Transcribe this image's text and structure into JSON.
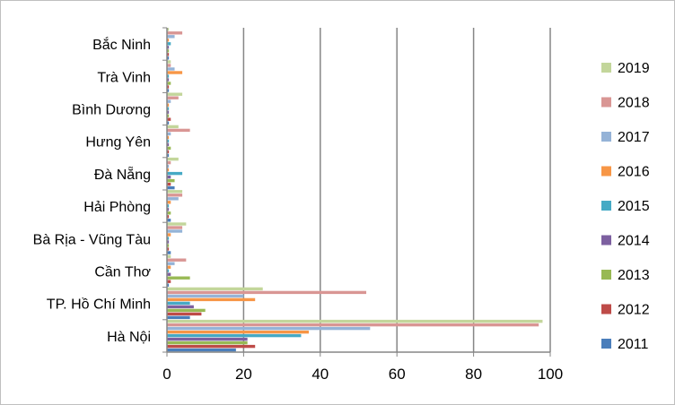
{
  "chart_data": {
    "type": "bar",
    "orientation": "horizontal",
    "title": "",
    "xlabel": "",
    "ylabel": "",
    "xlim": [
      0,
      100
    ],
    "x_ticks": [
      0,
      20,
      40,
      60,
      80,
      100
    ],
    "grid": "vertical major gridlines",
    "legend_position": "right",
    "categories": [
      "Hà Nội",
      "TP. Hồ Chí Minh",
      "Cần Thơ",
      "Bà Rịa - Vũng Tàu",
      "Hải Phòng",
      "Đà Nẵng",
      "Hưng Yên",
      "Bình Dương",
      "Trà Vinh",
      "Bắc Ninh"
    ],
    "series": [
      {
        "name": "2011",
        "color": "#4a7ebb",
        "values": [
          18,
          6,
          0.5,
          1,
          1,
          2,
          0.5,
          0.5,
          0.5,
          0.5
        ]
      },
      {
        "name": "2012",
        "color": "#be4b48",
        "values": [
          23,
          9,
          1,
          0.5,
          0.5,
          1,
          0.5,
          1,
          0.5,
          0.5
        ]
      },
      {
        "name": "2013",
        "color": "#98b954",
        "values": [
          21,
          10,
          6,
          0.5,
          1,
          2,
          1,
          0.5,
          1,
          0.5
        ]
      },
      {
        "name": "2014",
        "color": "#7d60a0",
        "values": [
          21,
          7,
          1,
          0.5,
          0.5,
          1,
          0.5,
          0.5,
          0.5,
          0.5
        ]
      },
      {
        "name": "2015",
        "color": "#46aac5",
        "values": [
          35,
          6,
          0.5,
          0.5,
          0.5,
          4,
          0.5,
          0.5,
          0.5,
          1
        ]
      },
      {
        "name": "2016",
        "color": "#f79646",
        "values": [
          37,
          23,
          1,
          1,
          1,
          0.5,
          0.5,
          0.5,
          4,
          0.5
        ]
      },
      {
        "name": "2017",
        "color": "#95b3d7",
        "values": [
          53,
          20,
          2,
          4,
          3,
          0.5,
          1,
          1,
          2,
          2
        ]
      },
      {
        "name": "2018",
        "color": "#d99694",
        "values": [
          97,
          52,
          5,
          4,
          4,
          1,
          6,
          3,
          1,
          4
        ]
      },
      {
        "name": "2019",
        "color": "#c3d69b",
        "values": [
          98,
          25,
          1,
          5,
          4,
          3,
          3,
          4,
          1,
          0.5
        ]
      }
    ]
  }
}
